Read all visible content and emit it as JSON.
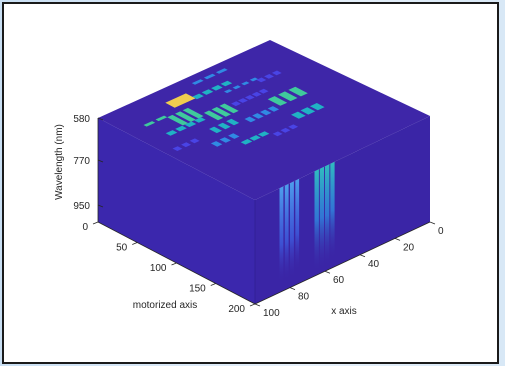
{
  "chart_data": {
    "type": "volume-3d",
    "colormap": "parula",
    "axes": {
      "z": {
        "label": "Wavelength (nm)",
        "ticks": [
          "580",
          "770",
          "950"
        ]
      },
      "y": {
        "label": "motorized axis",
        "ticks": [
          "0",
          "50",
          "100",
          "150",
          "200"
        ],
        "range": [
          0,
          200
        ]
      },
      "x": {
        "label": "x axis",
        "ticks": [
          "0",
          "20",
          "40",
          "60",
          "80",
          "100"
        ],
        "range": [
          0,
          100
        ]
      }
    },
    "grid": false,
    "legend": "none",
    "background_color": "#3e26a8",
    "feature_colors": [
      "#3e26a8",
      "#4a46e8",
      "#2f8fe6",
      "#1fb9c5",
      "#3fd39b",
      "#a9c43a",
      "#f9d64a"
    ]
  }
}
